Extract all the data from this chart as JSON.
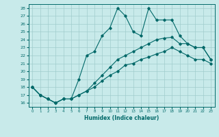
{
  "title": "",
  "xlabel": "Humidex (Indice chaleur)",
  "background_color": "#c8eaea",
  "grid_color": "#a0cccc",
  "line_color": "#006868",
  "xlim": [
    -0.5,
    23.5
  ],
  "ylim": [
    15.5,
    28.5
  ],
  "yticks": [
    16,
    17,
    18,
    19,
    20,
    21,
    22,
    23,
    24,
    25,
    26,
    27,
    28
  ],
  "xticks": [
    0,
    1,
    2,
    3,
    4,
    5,
    6,
    7,
    8,
    9,
    10,
    11,
    12,
    13,
    14,
    15,
    16,
    17,
    18,
    19,
    20,
    21,
    22,
    23
  ],
  "series1_y": [
    18.0,
    17.0,
    16.5,
    16.0,
    16.5,
    16.5,
    19.0,
    22.0,
    22.5,
    24.5,
    25.5,
    28.0,
    27.0,
    25.0,
    24.5,
    28.0,
    26.5,
    26.5,
    26.5,
    24.5,
    23.5,
    23.0,
    23.0,
    21.5
  ],
  "series2_y": [
    18.0,
    17.0,
    16.5,
    16.0,
    16.5,
    16.5,
    17.0,
    17.5,
    18.5,
    19.5,
    20.5,
    21.5,
    22.0,
    22.5,
    23.0,
    23.5,
    24.0,
    24.2,
    24.3,
    23.5,
    23.5,
    23.0,
    23.0,
    21.5
  ],
  "series3_y": [
    18.0,
    17.0,
    16.5,
    16.0,
    16.5,
    16.5,
    17.0,
    17.5,
    18.0,
    18.8,
    19.5,
    20.0,
    20.8,
    21.0,
    21.5,
    21.8,
    22.2,
    22.5,
    23.0,
    22.5,
    22.0,
    21.5,
    21.5,
    21.0
  ]
}
